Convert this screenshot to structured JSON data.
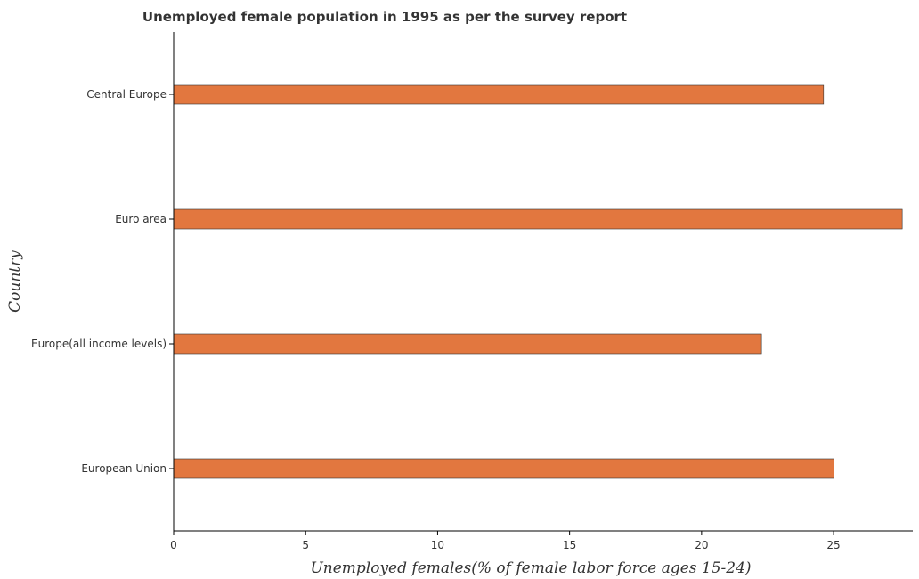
{
  "chart_data": {
    "type": "bar",
    "orientation": "horizontal",
    "title": "Unemployed female population in 1995 as per the survey report",
    "xlabel": "Unemployed females(% of female labor force ages 15-24)",
    "ylabel": "Country",
    "categories": [
      "Central Europe",
      "Euro area",
      "Europe(all income levels)",
      "European Union"
    ],
    "values": [
      24.62,
      27.6,
      22.27,
      25.01
    ],
    "xlim": [
      0,
      28
    ],
    "xticks": [
      0,
      5,
      10,
      15,
      20,
      25
    ],
    "grid": false,
    "legend": "none",
    "bar_color": "#e2773f"
  }
}
